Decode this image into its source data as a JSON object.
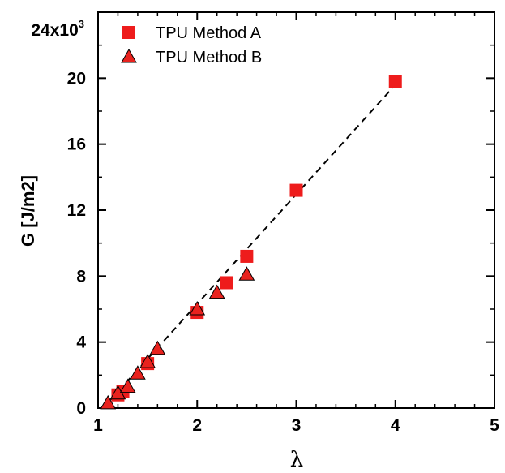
{
  "chart_data": {
    "type": "scatter",
    "xlabel": "λ",
    "ylabel": "G [J/m2]",
    "xlim": [
      1,
      5
    ],
    "ylim": [
      0,
      24000
    ],
    "x_ticks": [
      "1",
      "2",
      "3",
      "4",
      "5"
    ],
    "y_ticks": [
      "0",
      "4",
      "8",
      "12",
      "16",
      "20"
    ],
    "y_top_label": {
      "base": "24x10",
      "exponent": "3"
    },
    "legend_position": "top-left",
    "series": [
      {
        "name": "TPU Method A",
        "marker": "square",
        "color": "#ee1c1c",
        "x": [
          1.2,
          1.25,
          1.5,
          2.0,
          2.3,
          2.5,
          3.0,
          4.0
        ],
        "y": [
          800,
          1000,
          2700,
          5800,
          7600,
          9200,
          13200,
          19800
        ]
      },
      {
        "name": "TPU Method B",
        "marker": "triangle",
        "color": "#e8221e",
        "x": [
          1.1,
          1.2,
          1.3,
          1.4,
          1.5,
          1.6,
          2.0,
          2.2,
          2.5
        ],
        "y": [
          300,
          900,
          1300,
          2100,
          2800,
          3600,
          6000,
          7000,
          8100
        ]
      }
    ],
    "fit_line": {
      "style": "dashed",
      "color": "#000000",
      "x": [
        1.05,
        4.0
      ],
      "y": [
        0,
        19600
      ]
    }
  }
}
